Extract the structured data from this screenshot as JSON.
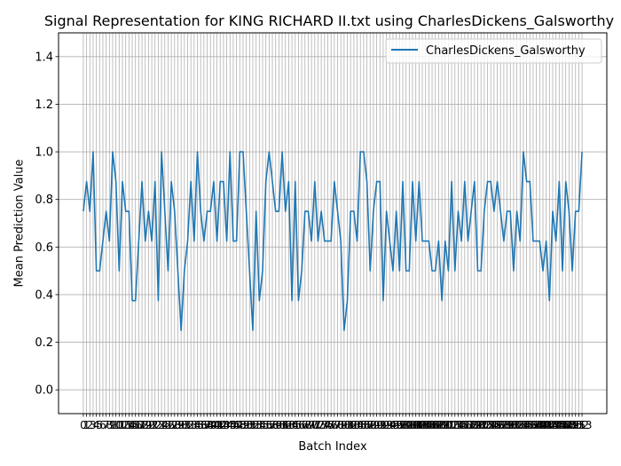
{
  "chart_data": {
    "type": "line",
    "title": "Signal Representation for KING RICHARD II.txt using CharlesDickens_Galsworthy",
    "xlabel": "Batch Index",
    "ylabel": "Mean Prediction Value",
    "xlim": [
      -7.6,
      160.6
    ],
    "ylim": [
      -0.1,
      1.5
    ],
    "yticks": [
      0.0,
      0.2,
      0.4,
      0.6,
      0.8,
      1.0,
      1.2,
      1.4
    ],
    "ytick_labels": [
      "0.0",
      "0.2",
      "0.4",
      "0.6",
      "0.8",
      "1.0",
      "1.2",
      "1.4"
    ],
    "xticks_start": 0,
    "xticks_end": 153,
    "grid": true,
    "legend_position": "top-right",
    "line_color": "#1f77b4",
    "series": [
      {
        "name": "CharlesDickens_Galsworthy",
        "x_start": 0,
        "values": [
          0.75,
          0.875,
          0.75,
          1.0,
          0.5,
          0.5,
          0.625,
          0.75,
          0.625,
          1.0,
          0.875,
          0.5,
          0.875,
          0.75,
          0.75,
          0.375,
          0.375,
          0.625,
          0.875,
          0.625,
          0.75,
          0.625,
          0.875,
          0.375,
          1.0,
          0.75,
          0.5,
          0.875,
          0.75,
          0.5,
          0.25,
          0.5,
          0.625,
          0.875,
          0.625,
          1.0,
          0.75,
          0.625,
          0.75,
          0.75,
          0.875,
          0.625,
          0.875,
          0.875,
          0.625,
          1.0,
          0.625,
          0.625,
          1.0,
          1.0,
          0.75,
          0.5,
          0.25,
          0.75,
          0.375,
          0.5,
          0.875,
          1.0,
          0.875,
          0.75,
          0.75,
          1.0,
          0.75,
          0.875,
          0.375,
          0.875,
          0.375,
          0.5,
          0.75,
          0.75,
          0.625,
          0.875,
          0.625,
          0.75,
          0.625,
          0.625,
          0.625,
          0.875,
          0.75,
          0.625,
          0.25,
          0.375,
          0.75,
          0.75,
          0.625,
          1.0,
          1.0,
          0.875,
          0.5,
          0.75,
          0.875,
          0.875,
          0.375,
          0.75,
          0.625,
          0.5,
          0.75,
          0.5,
          0.875,
          0.5,
          0.5,
          0.875,
          0.625,
          0.875,
          0.625,
          0.625,
          0.625,
          0.5,
          0.5,
          0.625,
          0.375,
          0.625,
          0.5,
          0.875,
          0.5,
          0.75,
          0.625,
          0.875,
          0.625,
          0.75,
          0.875,
          0.5,
          0.5,
          0.75,
          0.875,
          0.875,
          0.75,
          0.875,
          0.75,
          0.625,
          0.75,
          0.75,
          0.5,
          0.75,
          0.625,
          1.0,
          0.875,
          0.875,
          0.625,
          0.625,
          0.625,
          0.5,
          0.625,
          0.375,
          0.75,
          0.625,
          0.875,
          0.5,
          0.875,
          0.75,
          0.5,
          0.75,
          0.75,
          1.0
        ]
      }
    ]
  }
}
